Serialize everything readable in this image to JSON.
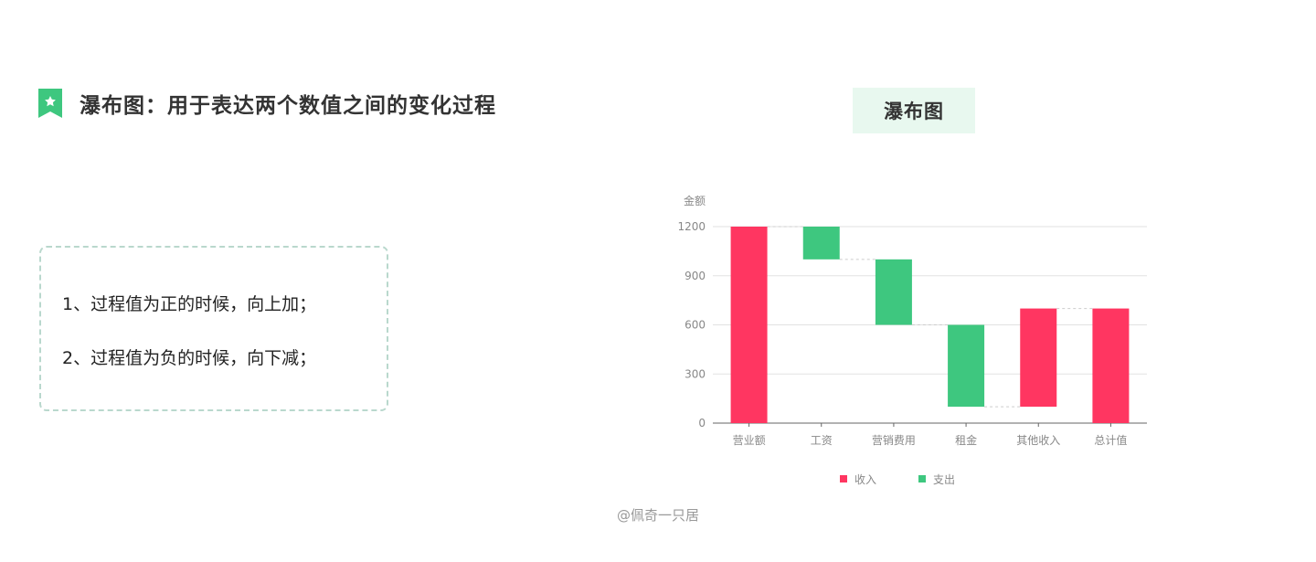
{
  "heading": {
    "icon": "bookmark-star-icon",
    "icon_color": "#3ec77f",
    "text": "瀑布图：用于表达两个数值之间的变化过程"
  },
  "notes": [
    "1、过程值为正的时候，向上加；",
    "2、过程值为负的时候，向下减；"
  ],
  "chart_title": "瀑布图",
  "chart_data": {
    "type": "bar",
    "subtype": "waterfall",
    "ylabel": "金额",
    "ylim": [
      0,
      1200
    ],
    "yticks": [
      0,
      300,
      600,
      900,
      1200
    ],
    "grid": true,
    "legend_position": "bottom",
    "categories": [
      "营业额",
      "工资",
      "营销费用",
      "租金",
      "其他收入",
      "总计值"
    ],
    "bars": [
      {
        "category": "营业额",
        "start": 0,
        "end": 1200,
        "series": "收入"
      },
      {
        "category": "工资",
        "start": 1200,
        "end": 1000,
        "series": "支出"
      },
      {
        "category": "营销费用",
        "start": 1000,
        "end": 600,
        "series": "支出"
      },
      {
        "category": "租金",
        "start": 600,
        "end": 100,
        "series": "支出"
      },
      {
        "category": "其他收入",
        "start": 100,
        "end": 700,
        "series": "收入"
      },
      {
        "category": "总计值",
        "start": 0,
        "end": 700,
        "series": "收入"
      }
    ],
    "series": [
      {
        "name": "收入",
        "color": "#ff3661"
      },
      {
        "name": "支出",
        "color": "#3ec77f"
      }
    ]
  },
  "watermark": "@佩奇一只居"
}
